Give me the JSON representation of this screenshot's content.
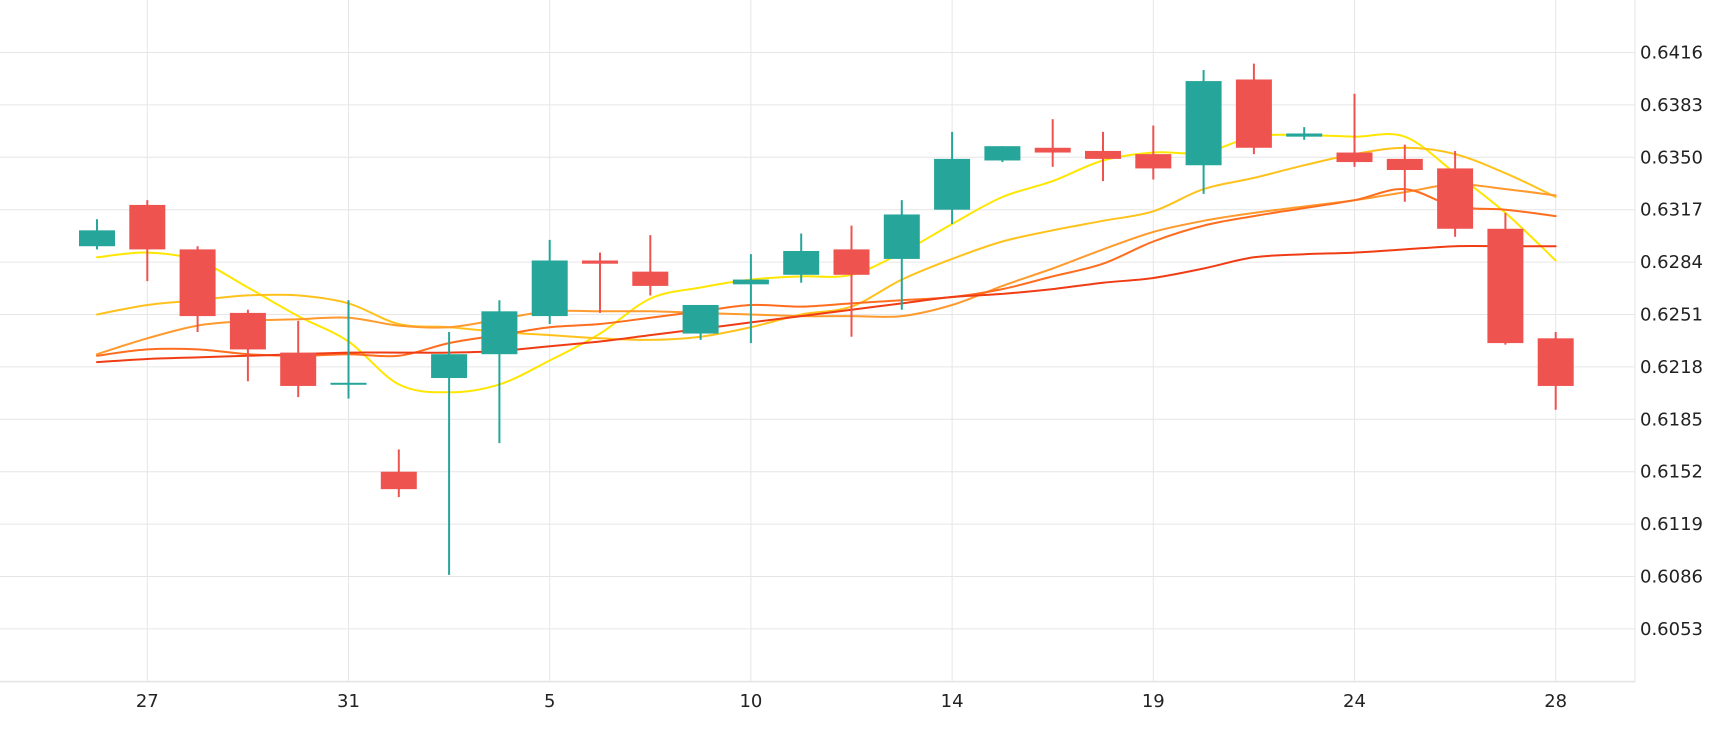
{
  "chart_data": {
    "type": "candlestick",
    "title": "",
    "xlabel": "",
    "ylabel": "",
    "ylim": [
      6020,
      6445
    ],
    "grid": true,
    "x_tick_labels": [
      "27",
      "31",
      "5",
      "10",
      "14",
      "19",
      "24",
      "28"
    ],
    "x_tick_positions": [
      1.0,
      5.0,
      9.0,
      13.0,
      17.0,
      21.0,
      25.0,
      29.0
    ],
    "y_ticks": [
      6416,
      6383,
      6350,
      6317,
      6284,
      6251,
      6218,
      6185,
      6152,
      6119,
      6086,
      6053
    ],
    "y_tick_labels": [
      "0.6416",
      "0.6383",
      "0.6350",
      "0.6317",
      "0.6284",
      "0.6251",
      "0.6218",
      "0.6185",
      "0.6152",
      "0.6119",
      "0.6086",
      "0.6053"
    ],
    "candles": [
      {
        "x": 0.0,
        "o": 6294,
        "h": 6311,
        "l": 6292,
        "c": 6304
      },
      {
        "x": 1.0,
        "o": 6320,
        "h": 6323,
        "l": 6272,
        "c": 6292
      },
      {
        "x": 2.0,
        "o": 6292,
        "h": 6294,
        "l": 6240,
        "c": 6250
      },
      {
        "x": 3.0,
        "o": 6252,
        "h": 6254,
        "l": 6209,
        "c": 6229
      },
      {
        "x": 4.0,
        "o": 6227,
        "h": 6247,
        "l": 6199,
        "c": 6206
      },
      {
        "x": 5.0,
        "o": 6208,
        "h": 6260,
        "l": 6198,
        "c": 6208
      },
      {
        "x": 6.0,
        "o": 6152,
        "h": 6166,
        "l": 6136,
        "c": 6141
      },
      {
        "x": 7.0,
        "o": 6211,
        "h": 6240,
        "l": 6087,
        "c": 6226
      },
      {
        "x": 8.0,
        "o": 6226,
        "h": 6260,
        "l": 6170,
        "c": 6253
      },
      {
        "x": 9.0,
        "o": 6250,
        "h": 6298,
        "l": 6245,
        "c": 6285
      },
      {
        "x": 10.0,
        "o": 6285,
        "h": 6290,
        "l": 6252,
        "c": 6283
      },
      {
        "x": 11.0,
        "o": 6278,
        "h": 6301,
        "l": 6263,
        "c": 6269
      },
      {
        "x": 12.0,
        "o": 6239,
        "h": 6257,
        "l": 6235,
        "c": 6257
      },
      {
        "x": 13.0,
        "o": 6270,
        "h": 6289,
        "l": 6233,
        "c": 6273
      },
      {
        "x": 14.0,
        "o": 6276,
        "h": 6302,
        "l": 6271,
        "c": 6291
      },
      {
        "x": 15.0,
        "o": 6292,
        "h": 6307,
        "l": 6237,
        "c": 6276
      },
      {
        "x": 16.0,
        "o": 6286,
        "h": 6323,
        "l": 6254,
        "c": 6314
      },
      {
        "x": 17.0,
        "o": 6317,
        "h": 6366,
        "l": 6308,
        "c": 6349
      },
      {
        "x": 18.0,
        "o": 6348,
        "h": 6357,
        "l": 6347,
        "c": 6357
      },
      {
        "x": 19.0,
        "o": 6356,
        "h": 6374,
        "l": 6344,
        "c": 6353
      },
      {
        "x": 20.0,
        "o": 6354,
        "h": 6366,
        "l": 6335,
        "c": 6349
      },
      {
        "x": 21.0,
        "o": 6352,
        "h": 6370,
        "l": 6336,
        "c": 6343
      },
      {
        "x": 22.0,
        "o": 6345,
        "h": 6405,
        "l": 6327,
        "c": 6398
      },
      {
        "x": 23.0,
        "o": 6399,
        "h": 6409,
        "l": 6352,
        "c": 6356
      },
      {
        "x": 24.0,
        "o": 6363,
        "h": 6369,
        "l": 6361,
        "c": 6365
      },
      {
        "x": 25.0,
        "o": 6353,
        "h": 6390,
        "l": 6344,
        "c": 6347
      },
      {
        "x": 26.0,
        "o": 6349,
        "h": 6358,
        "l": 6322,
        "c": 6342
      },
      {
        "x": 27.0,
        "o": 6343,
        "h": 6354,
        "l": 6300,
        "c": 6305
      },
      {
        "x": 28.0,
        "o": 6305,
        "h": 6315,
        "l": 6232,
        "c": 6233
      },
      {
        "x": 29.0,
        "o": 6236,
        "h": 6240,
        "l": 6191,
        "c": 6206
      }
    ],
    "moving_averages": [
      {
        "color": "#ffe600",
        "points": [
          [
            0.0,
            6287
          ],
          [
            1.0,
            6290
          ],
          [
            2.0,
            6285
          ],
          [
            3.0,
            6268
          ],
          [
            4.0,
            6250
          ],
          [
            5.0,
            6234
          ],
          [
            6.0,
            6207
          ],
          [
            7.0,
            6202
          ],
          [
            8.0,
            6207
          ],
          [
            9.0,
            6222
          ],
          [
            10.0,
            6239
          ],
          [
            11.0,
            6261
          ],
          [
            12.0,
            6268
          ],
          [
            13.0,
            6273
          ],
          [
            14.0,
            6275
          ],
          [
            15.0,
            6276
          ],
          [
            16.0,
            6290
          ],
          [
            17.0,
            6308
          ],
          [
            18.0,
            6325
          ],
          [
            19.0,
            6335
          ],
          [
            20.0,
            6348
          ],
          [
            21.0,
            6353
          ],
          [
            22.0,
            6353
          ],
          [
            23.0,
            6363
          ],
          [
            24.0,
            6364
          ],
          [
            25.0,
            6363
          ],
          [
            26.0,
            6363
          ],
          [
            27.0,
            6340
          ],
          [
            28.0,
            6315
          ],
          [
            29.0,
            6285
          ]
        ]
      },
      {
        "color": "#ffc21c",
        "points": [
          [
            0.0,
            6251
          ],
          [
            1.0,
            6257
          ],
          [
            2.0,
            6260
          ],
          [
            3.0,
            6263
          ],
          [
            4.0,
            6263
          ],
          [
            5.0,
            6258
          ],
          [
            6.0,
            6245
          ],
          [
            7.0,
            6243
          ],
          [
            8.0,
            6240
          ],
          [
            9.0,
            6238
          ],
          [
            10.0,
            6236
          ],
          [
            11.0,
            6235
          ],
          [
            12.0,
            6237
          ],
          [
            13.0,
            6243
          ],
          [
            14.0,
            6251
          ],
          [
            15.0,
            6256
          ],
          [
            16.0,
            6273
          ],
          [
            17.0,
            6286
          ],
          [
            18.0,
            6297
          ],
          [
            19.0,
            6304
          ],
          [
            20.0,
            6310
          ],
          [
            21.0,
            6316
          ],
          [
            22.0,
            6330
          ],
          [
            23.0,
            6337
          ],
          [
            24.0,
            6345
          ],
          [
            25.0,
            6352
          ],
          [
            26.0,
            6356
          ],
          [
            27.0,
            6352
          ],
          [
            28.0,
            6340
          ],
          [
            29.0,
            6325
          ]
        ]
      },
      {
        "color": "#ff9a2e",
        "points": [
          [
            0.0,
            6226
          ],
          [
            1.0,
            6236
          ],
          [
            2.0,
            6244
          ],
          [
            3.0,
            6247
          ],
          [
            4.0,
            6248
          ],
          [
            5.0,
            6249
          ],
          [
            6.0,
            6244
          ],
          [
            7.0,
            6243
          ],
          [
            8.0,
            6248
          ],
          [
            9.0,
            6253
          ],
          [
            10.0,
            6253
          ],
          [
            11.0,
            6253
          ],
          [
            12.0,
            6252
          ],
          [
            13.0,
            6251
          ],
          [
            14.0,
            6250
          ],
          [
            15.0,
            6250
          ],
          [
            16.0,
            6250
          ],
          [
            17.0,
            6257
          ],
          [
            18.0,
            6269
          ],
          [
            19.0,
            6280
          ],
          [
            20.0,
            6292
          ],
          [
            21.0,
            6303
          ],
          [
            22.0,
            6310
          ],
          [
            23.0,
            6315
          ],
          [
            24.0,
            6319
          ],
          [
            25.0,
            6323
          ],
          [
            26.0,
            6328
          ],
          [
            27.0,
            6333
          ],
          [
            28.0,
            6330
          ],
          [
            29.0,
            6326
          ]
        ]
      },
      {
        "color": "#ff6d1f",
        "points": [
          [
            0.0,
            6225
          ],
          [
            1.0,
            6229
          ],
          [
            2.0,
            6229
          ],
          [
            3.0,
            6226
          ],
          [
            4.0,
            6225
          ],
          [
            5.0,
            6226
          ],
          [
            6.0,
            6225
          ],
          [
            7.0,
            6233
          ],
          [
            8.0,
            6238
          ],
          [
            9.0,
            6243
          ],
          [
            10.0,
            6245
          ],
          [
            11.0,
            6249
          ],
          [
            12.0,
            6253
          ],
          [
            13.0,
            6257
          ],
          [
            14.0,
            6256
          ],
          [
            15.0,
            6258
          ],
          [
            16.0,
            6260
          ],
          [
            17.0,
            6262
          ],
          [
            18.0,
            6267
          ],
          [
            19.0,
            6275
          ],
          [
            20.0,
            6283
          ],
          [
            21.0,
            6297
          ],
          [
            22.0,
            6307
          ],
          [
            23.0,
            6313
          ],
          [
            24.0,
            6318
          ],
          [
            25.0,
            6323
          ],
          [
            26.0,
            6330
          ],
          [
            27.0,
            6319
          ],
          [
            28.0,
            6317
          ],
          [
            29.0,
            6313
          ]
        ]
      },
      {
        "color": "#f03c14",
        "points": [
          [
            0.0,
            6221
          ],
          [
            1.0,
            6223
          ],
          [
            2.0,
            6224
          ],
          [
            3.0,
            6225
          ],
          [
            4.0,
            6226
          ],
          [
            5.0,
            6227
          ],
          [
            6.0,
            6227
          ],
          [
            7.0,
            6227
          ],
          [
            8.0,
            6228
          ],
          [
            9.0,
            6231
          ],
          [
            10.0,
            6234
          ],
          [
            11.0,
            6238
          ],
          [
            12.0,
            6242
          ],
          [
            13.0,
            6246
          ],
          [
            14.0,
            6250
          ],
          [
            15.0,
            6254
          ],
          [
            16.0,
            6258
          ],
          [
            17.0,
            6262
          ],
          [
            18.0,
            6264
          ],
          [
            19.0,
            6267
          ],
          [
            20.0,
            6271
          ],
          [
            21.0,
            6274
          ],
          [
            22.0,
            6280
          ],
          [
            23.0,
            6287
          ],
          [
            24.0,
            6289
          ],
          [
            25.0,
            6290
          ],
          [
            26.0,
            6292
          ],
          [
            27.0,
            6294
          ],
          [
            28.0,
            6294
          ],
          [
            29.0,
            6294
          ]
        ]
      }
    ],
    "colors": {
      "up": "#26a69a",
      "down": "#ef5350",
      "grid": "#e6e6e6",
      "axis_text": "#222222"
    }
  }
}
